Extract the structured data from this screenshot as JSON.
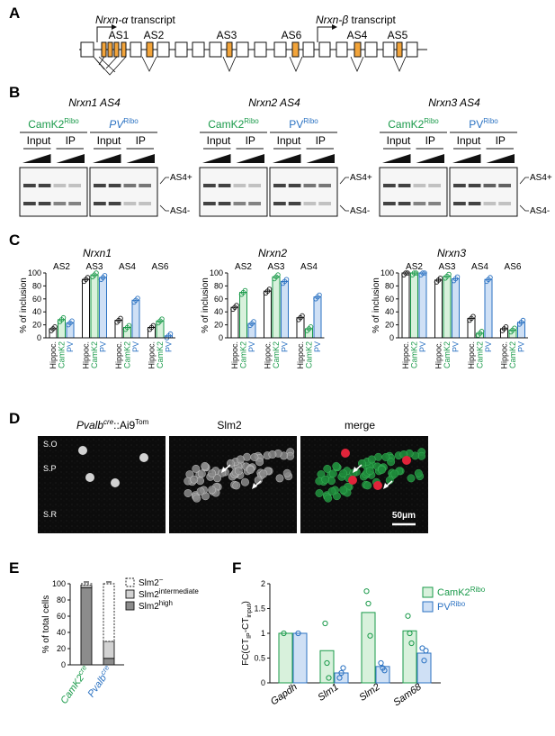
{
  "panel_labels": [
    "A",
    "B",
    "C",
    "D",
    "E",
    "F"
  ],
  "colors": {
    "camk2": "#1a9a4a",
    "pv": "#2b72c2",
    "camk2_fill": "#d8f1dc",
    "pv_fill": "#cfe0f5",
    "orange": "#f2a43a"
  },
  "panelA": {
    "transcript_alpha_gene": "Nrxn-α",
    "transcript_alpha_suffix": " transcript",
    "transcript_beta_gene": "Nrxn-β",
    "transcript_beta_suffix": " transcript",
    "sites": [
      "AS1",
      "AS2",
      "AS3",
      "AS6",
      "AS4",
      "AS5"
    ]
  },
  "panelB": {
    "titles": [
      "Nrxn1 AS4",
      "Nrxn2 AS4",
      "Nrxn3 AS4"
    ],
    "camk2_label": "CamK2",
    "pv_label": "PV",
    "ribo": "Ribo",
    "input": "Input",
    "ip": "IP",
    "band_plus": "AS4+",
    "band_minus": "AS4-"
  },
  "panelC": {
    "ylabel": "% of inclusion",
    "yticks": [
      0,
      20,
      40,
      60,
      80,
      100
    ],
    "xcats": [
      "Hippoc.",
      "CamK2",
      "PV"
    ],
    "charts": [
      {
        "title": "Nrxn1",
        "groups": [
          {
            "site": "AS2",
            "values": [
              14,
              28,
              23
            ]
          },
          {
            "site": "AS3",
            "values": [
              90,
              97,
              93
            ]
          },
          {
            "site": "AS4",
            "values": [
              27,
              16,
              58
            ]
          },
          {
            "site": "AS6",
            "values": [
              16,
              26,
              3
            ]
          }
        ]
      },
      {
        "title": "Nrxn2",
        "groups": [
          {
            "site": "AS2",
            "values": [
              47,
              70,
              22
            ]
          },
          {
            "site": "AS3",
            "values": [
              72,
              94,
              87
            ]
          },
          {
            "site": "AS4",
            "values": [
              31,
              14,
              63
            ]
          }
        ]
      },
      {
        "title": "Nrxn3",
        "groups": [
          {
            "site": "AS2",
            "values": [
              100,
              100,
              100
            ]
          },
          {
            "site": "AS3",
            "values": [
              89,
              95,
              91
            ]
          },
          {
            "site": "AS4",
            "values": [
              30,
              7,
              90
            ]
          },
          {
            "site": "AS6",
            "values": [
              14,
              12,
              24
            ]
          }
        ]
      }
    ]
  },
  "panelD": {
    "title1_gene": "Pvalb",
    "title1_sup": "cre",
    "title1_rest": "::Ai9",
    "title1_sup2": "Tom",
    "title2": "Slm2",
    "title3": "merge",
    "layers": [
      "S.O",
      "S.P",
      "S.R"
    ],
    "scale": "50μm"
  },
  "panelE": {
    "ylabel": "% of total cells",
    "yticks": [
      0,
      20,
      40,
      60,
      80,
      100
    ],
    "categories": [
      "CamK2",
      "Pvalb"
    ],
    "cat_sup": "cre",
    "legend": [
      "Slm2",
      "Slm2",
      "Slm2"
    ],
    "legend_sup": [
      "−",
      "intermediate",
      "high"
    ],
    "chart_data": {
      "type": "bar",
      "stacked": true,
      "categories": [
        "CamK2cre",
        "Pvalbcre"
      ],
      "series": [
        {
          "name": "Slm2high",
          "values": [
            95,
            8
          ]
        },
        {
          "name": "Slm2intermediate",
          "values": [
            3,
            21
          ]
        },
        {
          "name": "Slm2−",
          "values": [
            2,
            71
          ]
        }
      ],
      "ylim": [
        0,
        100
      ]
    }
  },
  "panelF": {
    "ylabel_main": "FC(CT",
    "ylabel_sub1": "IP",
    "ylabel_mid": "-CT",
    "ylabel_sub2": "input",
    "ylabel_end": ")",
    "yticks": [
      "0",
      "0.5",
      "1",
      "1.5",
      "2"
    ],
    "legend": [
      "CamK2",
      "PV"
    ],
    "ribo": "Ribo",
    "chart_data": {
      "type": "bar",
      "categories": [
        "Gapdh",
        "Slm1",
        "Slm2",
        "Sam68"
      ],
      "series": [
        {
          "name": "CamK2Ribo",
          "values": [
            1.0,
            0.65,
            1.42,
            1.05
          ]
        },
        {
          "name": "PVRibo",
          "values": [
            1.0,
            0.2,
            0.33,
            0.6
          ]
        }
      ],
      "ylim": [
        0,
        2
      ]
    }
  }
}
